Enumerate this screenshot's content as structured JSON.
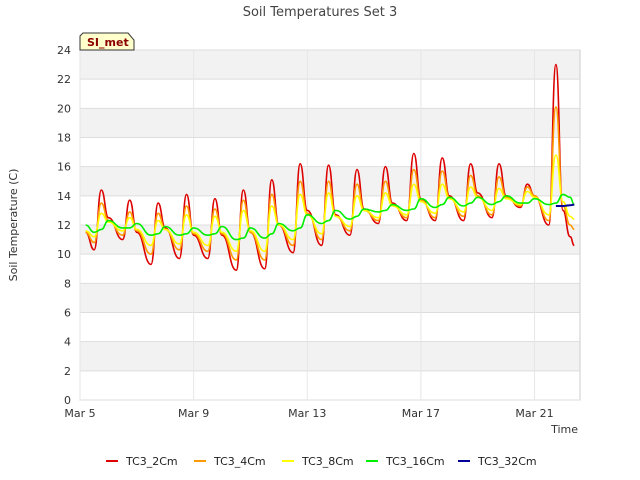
{
  "chart_data": {
    "type": "line",
    "title": "Soil Temperatures Set 3",
    "xlabel": "Time",
    "ylabel": "Soil Temperature (C)",
    "ylim": [
      0,
      24
    ],
    "yticks": [
      0,
      2,
      4,
      6,
      8,
      10,
      12,
      14,
      16,
      18,
      20,
      22,
      24
    ],
    "xlim_days": [
      0,
      17.6
    ],
    "xticks": [
      {
        "day": 0,
        "label": "Mar 5"
      },
      {
        "day": 4,
        "label": "Mar 9"
      },
      {
        "day": 8,
        "label": "Mar 13"
      },
      {
        "day": 12,
        "label": "Mar 17"
      },
      {
        "day": 16,
        "label": "Mar 21"
      }
    ],
    "badge": "SI_met",
    "legend_position": "bottom",
    "x_days": [
      0.2,
      0.5,
      0.75,
      1.0,
      1.5,
      1.75,
      2.0,
      2.5,
      2.75,
      3.0,
      3.5,
      3.75,
      4.0,
      4.5,
      4.75,
      5.0,
      5.5,
      5.75,
      6.0,
      6.5,
      6.75,
      7.0,
      7.5,
      7.75,
      8.0,
      8.5,
      8.75,
      9.0,
      9.5,
      9.75,
      10.0,
      10.5,
      10.75,
      11.0,
      11.5,
      11.75,
      12.0,
      12.5,
      12.75,
      13.0,
      13.5,
      13.75,
      14.0,
      14.5,
      14.75,
      15.0,
      15.5,
      15.75,
      16.0,
      16.5,
      16.75,
      17.0,
      17.25,
      17.4
    ],
    "series": [
      {
        "name": "TC3_2Cm",
        "color": "#dd0000",
        "values": [
          11.5,
          10.3,
          14.4,
          12.5,
          11.0,
          13.7,
          11.5,
          9.3,
          13.5,
          11.8,
          9.7,
          14.1,
          11.3,
          9.7,
          13.8,
          11.3,
          8.9,
          14.4,
          11.5,
          9.0,
          15.1,
          12.0,
          10.1,
          16.2,
          13.0,
          10.6,
          16.1,
          12.7,
          11.3,
          15.8,
          13.1,
          12.1,
          16.0,
          13.5,
          12.3,
          16.9,
          13.8,
          12.3,
          16.6,
          14.0,
          12.3,
          16.2,
          14.2,
          12.5,
          16.2,
          14.0,
          13.2,
          14.8,
          14.0,
          12.0,
          23.0,
          13.0,
          11.2,
          10.6
        ]
      },
      {
        "name": "TC3_4Cm",
        "color": "#ff9900",
        "values": [
          11.5,
          10.8,
          13.5,
          12.3,
          11.3,
          12.9,
          11.6,
          10.0,
          12.8,
          11.7,
          10.3,
          13.3,
          11.4,
          10.2,
          13.1,
          11.4,
          9.6,
          13.7,
          11.5,
          9.6,
          14.1,
          12.0,
          10.6,
          15.0,
          12.8,
          11.0,
          15.0,
          12.6,
          11.6,
          14.8,
          13.0,
          12.3,
          15.0,
          13.4,
          12.5,
          15.8,
          13.7,
          12.5,
          15.7,
          13.9,
          12.6,
          15.4,
          14.0,
          12.7,
          15.3,
          13.9,
          13.3,
          14.6,
          14.0,
          12.3,
          20.1,
          13.3,
          12.0,
          11.7
        ]
      },
      {
        "name": "TC3_8Cm",
        "color": "#ffff00",
        "values": [
          11.6,
          11.2,
          12.8,
          12.2,
          11.6,
          12.5,
          11.7,
          10.6,
          12.3,
          11.7,
          10.7,
          12.7,
          11.5,
          10.6,
          12.6,
          11.5,
          10.2,
          13.0,
          11.6,
          10.2,
          13.3,
          12.0,
          11.0,
          14.1,
          12.7,
          11.4,
          14.2,
          12.6,
          11.9,
          14.0,
          13.0,
          12.5,
          14.2,
          13.3,
          12.7,
          14.8,
          13.6,
          12.8,
          14.8,
          13.8,
          12.9,
          14.6,
          13.9,
          13.0,
          14.5,
          13.8,
          13.4,
          14.3,
          13.9,
          12.7,
          16.8,
          13.6,
          12.6,
          12.4
        ]
      },
      {
        "name": "TC3_16Cm",
        "color": "#00ee00",
        "values": [
          12.0,
          11.5,
          11.7,
          12.3,
          11.8,
          11.8,
          12.1,
          11.3,
          11.4,
          11.9,
          11.3,
          11.4,
          11.8,
          11.3,
          11.4,
          11.9,
          11.0,
          11.1,
          11.8,
          11.1,
          11.4,
          12.1,
          11.6,
          11.8,
          12.7,
          12.1,
          12.3,
          13.0,
          12.4,
          12.6,
          13.1,
          12.9,
          13.0,
          13.4,
          13.0,
          13.1,
          13.8,
          13.2,
          13.4,
          13.9,
          13.3,
          13.5,
          13.9,
          13.4,
          13.6,
          14.0,
          13.5,
          13.5,
          13.8,
          13.4,
          13.5,
          14.1,
          13.9,
          13.4
        ]
      },
      {
        "name": "TC3_32Cm",
        "color": "#000099",
        "values": [
          null,
          null,
          null,
          null,
          null,
          null,
          null,
          null,
          null,
          null,
          null,
          null,
          null,
          null,
          null,
          null,
          null,
          null,
          null,
          null,
          null,
          null,
          null,
          null,
          null,
          null,
          null,
          null,
          null,
          null,
          null,
          null,
          null,
          null,
          null,
          null,
          null,
          null,
          null,
          null,
          null,
          null,
          null,
          null,
          null,
          null,
          null,
          null,
          null,
          null,
          13.3,
          13.3,
          13.35,
          13.4
        ]
      }
    ]
  }
}
